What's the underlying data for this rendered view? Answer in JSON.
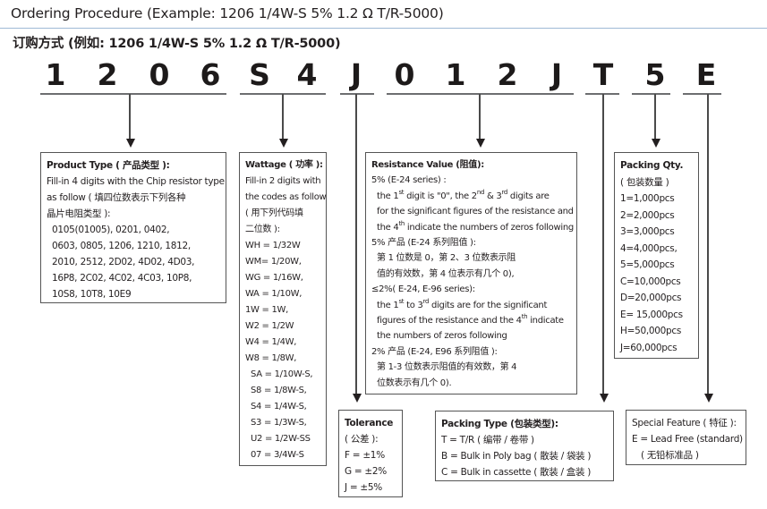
{
  "header": {
    "title": "Ordering Procedure (Example: 1206 1/4W-S 5% 1.2 Ω  T/R-5000)",
    "subtitle": "订购方式 (例如: 1206 1/4W-S 5% 1.2 Ω  T/R-5000)"
  },
  "code": [
    "1",
    "2",
    "0",
    "6",
    "S",
    "4",
    "J",
    "0",
    "1",
    "2",
    "J",
    "T",
    "5",
    "E"
  ],
  "boxes": {
    "product_type": {
      "title": "Product Type ( 产品类型 ):",
      "lines": [
        [
          {
            "t": "Fill-in 4 digits with the Chip resistor type"
          }
        ],
        [
          {
            "t": "as follow ( 填四位数表示下列各种"
          }
        ],
        [
          {
            "t": "晶片电阻类型 ):"
          }
        ],
        [
          {
            "t": "0105(01005), 0201, 0402,",
            "i": 1
          }
        ],
        [
          {
            "t": "0603, 0805, 1206, 1210, 1812,",
            "i": 1
          }
        ],
        [
          {
            "t": "2010, 2512, 2D02, 4D02, 4D03,",
            "i": 1
          }
        ],
        [
          {
            "t": "16P8, 2C02, 4C02, 4C03, 10P8,",
            "i": 1
          }
        ],
        [
          {
            "t": "10S8, 10T8, 10E9",
            "i": 1
          }
        ]
      ]
    },
    "wattage": {
      "title": "Wattage ( 功率 ):",
      "lines": [
        [
          {
            "t": "Fill-in 2 digits with"
          }
        ],
        [
          {
            "t": "the codes as follow"
          }
        ],
        [
          {
            "t": "( 用下列代码填"
          }
        ],
        [
          {
            "t": "二位数 ):"
          }
        ],
        [
          {
            "t": "WH = 1/32W"
          }
        ],
        [
          {
            "t": "WM= 1/20W,"
          }
        ],
        [
          {
            "t": "WG = 1/16W,"
          }
        ],
        [
          {
            "t": "WA = 1/10W,"
          }
        ],
        [
          {
            "t": "1W  = 1W,"
          }
        ],
        [
          {
            "t": "W2  = 1/2W"
          }
        ],
        [
          {
            "t": "W4  = 1/4W,"
          }
        ],
        [
          {
            "t": "W8  = 1/8W,"
          }
        ],
        [
          {
            "t": "SA  = 1/10W-S,",
            "i": 1
          }
        ],
        [
          {
            "t": "S8  = 1/8W-S,",
            "i": 1
          }
        ],
        [
          {
            "t": "S4  = 1/4W-S,",
            "i": 1
          }
        ],
        [
          {
            "t": "S3  = 1/3W-S,",
            "i": 1
          }
        ],
        [
          {
            "t": "U2  = 1/2W-SS",
            "i": 1
          }
        ],
        [
          {
            "t": "07  = 3/4W-S",
            "i": 1
          }
        ]
      ]
    },
    "resistance": {
      "title": "Resistance Value (阻值):",
      "lines": [
        [
          {
            "t": "5% (E-24 series) :"
          }
        ],
        [
          {
            "t": "the 1",
            "i": 1
          },
          {
            "t": "st",
            "sup": 1
          },
          {
            "t": " digit is \"0\", the 2"
          },
          {
            "t": "nd",
            "sup": 1
          },
          {
            "t": " & 3"
          },
          {
            "t": "rd",
            "sup": 1
          },
          {
            "t": " digits are"
          }
        ],
        [
          {
            "t": "for the significant figures of the resistance and",
            "i": 1
          }
        ],
        [
          {
            "t": "the 4",
            "i": 1
          },
          {
            "t": "th",
            "sup": 1
          },
          {
            "t": " indicate the numbers of zeros following"
          }
        ],
        [
          {
            "t": "5% 产品 (E-24 系列阻值 ):"
          }
        ],
        [
          {
            "t": "第 1 位数是 0，第 2、3 位数表示阻",
            "i": 1
          }
        ],
        [
          {
            "t": "值的有效数，第 4 位表示有几个 0),",
            "i": 1
          }
        ],
        [
          {
            "t": "≤2%( E-24, E-96 series):"
          }
        ],
        [
          {
            "t": "the 1",
            "i": 1
          },
          {
            "t": "st",
            "sup": 1
          },
          {
            "t": " to 3"
          },
          {
            "t": "rd",
            "sup": 1
          },
          {
            "t": " digits are for the significant"
          }
        ],
        [
          {
            "t": "figures of the resistance and the 4",
            "i": 1
          },
          {
            "t": "th",
            "sup": 1
          },
          {
            "t": " indicate"
          }
        ],
        [
          {
            "t": "the numbers of zeros following",
            "i": 1
          }
        ],
        [
          {
            "t": "2% 产品 (E-24, E96 系列阻值 ):"
          }
        ],
        [
          {
            "t": "第 1-3 位数表示阻值的有效数，第 4",
            "i": 1
          }
        ],
        [
          {
            "t": "位数表示有几个 0).",
            "i": 1
          }
        ]
      ]
    },
    "tolerance": {
      "title": "Tolerance",
      "lines": [
        [
          {
            "t": "( 公差 ):"
          }
        ],
        [
          {
            "t": "F  = ±1%"
          }
        ],
        [
          {
            "t": "G = ±2%"
          }
        ],
        [
          {
            "t": "J  = ±5%"
          }
        ]
      ]
    },
    "packing_type": {
      "title": "Packing Type (包装类型):",
      "lines": [
        [
          {
            "t": "T = T/R ( 编带 / 卷带 )"
          }
        ],
        [
          {
            "t": "B = Bulk in Poly bag ( 散装 / 袋装 )"
          }
        ],
        [
          {
            "t": "C = Bulk in cassette ( 散装 / 盒装 )"
          }
        ]
      ]
    },
    "packing_qty": {
      "title": "Packing Qty.",
      "lines": [
        [
          {
            "t": "( 包装数量 )"
          }
        ],
        [
          {
            "t": "1=1,000pcs"
          }
        ],
        [
          {
            "t": "2=2,000pcs"
          }
        ],
        [
          {
            "t": "3=3,000pcs"
          }
        ],
        [
          {
            "t": "4=4,000pcs,"
          }
        ],
        [
          {
            "t": "5=5,000pcs"
          }
        ],
        [
          {
            "t": "C=10,000pcs"
          }
        ],
        [
          {
            "t": "D=20,000pcs"
          }
        ],
        [
          {
            "t": "E= 15,000pcs"
          }
        ],
        [
          {
            "t": "H=50,000pcs"
          }
        ],
        [
          {
            "t": "J=60,000pcs"
          }
        ]
      ]
    },
    "special_feature": {
      "title": "Special Feature ( 特征 ):",
      "lines": [
        [
          {
            "t": "E = Lead Free (standard)"
          }
        ],
        [
          {
            "t": "( 无铅标准品 )",
            "i": 2
          }
        ]
      ]
    }
  }
}
